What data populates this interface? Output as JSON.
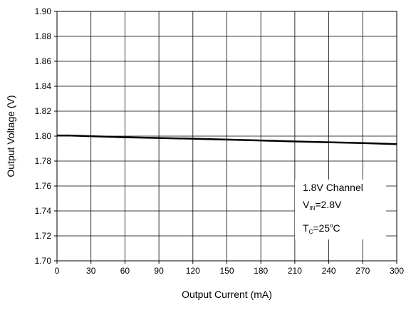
{
  "chart_data": {
    "type": "line",
    "title": "",
    "xlabel": "Output Current (mA)",
    "ylabel": "Output Voltage (V)",
    "xlim": [
      0,
      300
    ],
    "ylim": [
      1.7,
      1.9
    ],
    "xticks": [
      "0",
      "30",
      "60",
      "90",
      "120",
      "150",
      "180",
      "210",
      "240",
      "270",
      "300"
    ],
    "yticks": [
      "1.70",
      "1.72",
      "1.74",
      "1.76",
      "1.78",
      "1.80",
      "1.82",
      "1.84",
      "1.86",
      "1.88",
      "1.90"
    ],
    "grid": true,
    "series": [
      {
        "x": [
          0,
          10,
          30,
          60,
          90,
          120,
          150,
          180,
          210,
          240,
          270,
          300
        ],
        "y": [
          1.8005,
          1.8005,
          1.7999,
          1.7991,
          1.7985,
          1.7979,
          1.7972,
          1.7965,
          1.7957,
          1.7951,
          1.7944,
          1.7936
        ],
        "color": "#000000"
      }
    ],
    "annotation": {
      "line1": "1.8V Channel",
      "line2_main": "V",
      "line2_sub": "IN",
      "line2_rest": "=2.8V",
      "line3_main": "T",
      "line3_sub": "C",
      "line3_rest": "=25",
      "line3_sup": "o",
      "line3_unit": "C"
    }
  }
}
